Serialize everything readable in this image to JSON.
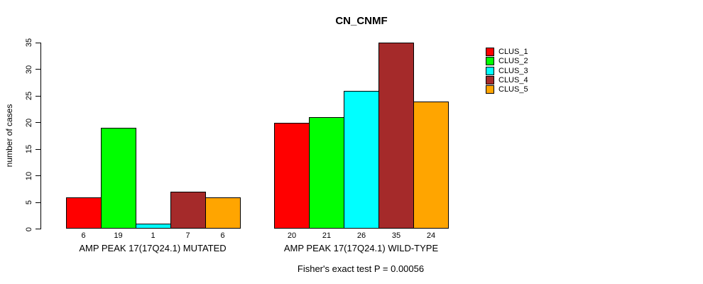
{
  "title": "CN_CNMF",
  "y_axis": {
    "label": "number of cases"
  },
  "footer": "Fisher's exact test P = 0.00056",
  "legend": {
    "items": [
      {
        "label": "CLUS_1",
        "color": "#FF0000"
      },
      {
        "label": "CLUS_2",
        "color": "#00FF00"
      },
      {
        "label": "CLUS_3",
        "color": "#00FFFF"
      },
      {
        "label": "CLUS_4",
        "color": "#A52A2A"
      },
      {
        "label": "CLUS_5",
        "color": "#FFA500"
      }
    ]
  },
  "chart_data": {
    "type": "bar",
    "title": "CN_CNMF",
    "xlabel": "",
    "ylabel": "number of cases",
    "ylim": [
      0,
      35
    ],
    "yticks": [
      0,
      5,
      10,
      15,
      20,
      25,
      30,
      35
    ],
    "grid": false,
    "legend_position": "right",
    "bar_value_labels": true,
    "annotation": "Fisher's exact test P = 0.00056",
    "categories": [
      "AMP PEAK 17(17Q24.1) MUTATED",
      "AMP PEAK 17(17Q24.1) WILD-TYPE"
    ],
    "series": [
      {
        "name": "CLUS_1",
        "color": "#FF0000",
        "values": [
          6,
          20
        ]
      },
      {
        "name": "CLUS_2",
        "color": "#00FF00",
        "values": [
          19,
          21
        ]
      },
      {
        "name": "CLUS_3",
        "color": "#00FFFF",
        "values": [
          1,
          26
        ]
      },
      {
        "name": "CLUS_4",
        "color": "#A52A2A",
        "values": [
          7,
          35
        ]
      },
      {
        "name": "CLUS_5",
        "color": "#FFA500",
        "values": [
          6,
          24
        ]
      }
    ]
  }
}
